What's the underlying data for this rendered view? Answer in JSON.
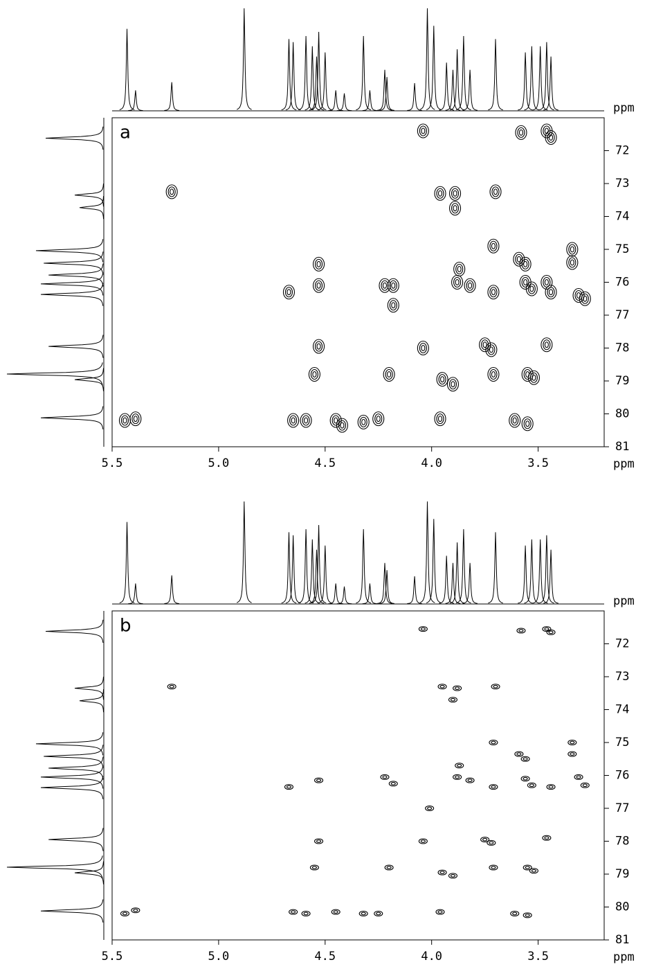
{
  "chart_data": [
    {
      "type": "contour",
      "panel_label": "a",
      "xlabel": "ppm",
      "ylabel": "ppm",
      "color": "#000000",
      "xlim": [
        5.5,
        3.19
      ],
      "ylim": [
        81,
        71
      ],
      "xticks": [
        5.5,
        {
          "value": 5,
          "label": "5.0"
        },
        4.5,
        {
          "value": 4,
          "label": "4.0"
        },
        3.5
      ],
      "yticks": [
        72,
        73,
        74,
        75,
        76,
        77,
        78,
        79,
        80,
        81
      ],
      "cross_peaks": {
        "x": [
          4.04,
          3.58,
          3.46,
          3.44,
          5.22,
          3.96,
          3.89,
          3.89,
          3.7,
          3.71,
          3.34,
          3.34,
          3.87,
          3.88,
          3.82,
          3.59,
          3.56,
          4.67,
          4.53,
          4.53,
          4.22,
          4.18,
          4.18,
          3.71,
          3.56,
          3.53,
          3.44,
          3.46,
          3.31,
          3.28,
          3.46,
          4.53,
          4.04,
          3.75,
          3.72,
          4.55,
          4.2,
          3.95,
          3.9,
          3.71,
          3.55,
          3.52,
          5.44,
          5.39,
          4.65,
          4.59,
          4.45,
          4.42,
          4.32,
          4.25,
          3.96,
          3.61,
          3.55
        ],
        "y": [
          71.4,
          71.45,
          71.4,
          71.6,
          73.25,
          73.3,
          73.3,
          73.75,
          73.25,
          74.9,
          75.0,
          75.4,
          75.6,
          76.0,
          76.1,
          75.3,
          75.45,
          76.3,
          76.1,
          75.45,
          76.1,
          76.1,
          76.7,
          76.3,
          76.0,
          76.2,
          76.3,
          76.0,
          76.4,
          76.5,
          77.9,
          77.95,
          78.0,
          77.9,
          78.05,
          78.8,
          78.8,
          78.95,
          79.1,
          78.8,
          78.8,
          78.9,
          80.2,
          80.15,
          80.2,
          80.2,
          80.2,
          80.35,
          80.25,
          80.15,
          80.15,
          80.2,
          80.3
        ]
      },
      "projection_top": {
        "x": [
          5.43,
          5.39,
          5.22,
          4.88,
          4.67,
          4.65,
          4.59,
          4.56,
          4.54,
          4.53,
          4.5,
          4.45,
          4.41,
          4.32,
          4.29,
          4.22,
          4.21,
          4.08,
          4.02,
          3.99,
          3.93,
          3.9,
          3.88,
          3.85,
          3.82,
          3.7,
          3.56,
          3.53,
          3.49,
          3.46,
          3.44
        ],
        "values": [
          80,
          20,
          28,
          100,
          70,
          67,
          73,
          63,
          53,
          77,
          57,
          20,
          17,
          73,
          20,
          40,
          33,
          27,
          100,
          83,
          47,
          40,
          60,
          73,
          40,
          70,
          57,
          63,
          63,
          67,
          53
        ]
      },
      "projection_left": {
        "y": [
          71.62,
          73.35,
          73.73,
          75.04,
          75.42,
          75.78,
          76.05,
          76.37,
          77.95,
          78.79,
          78.96,
          80.12
        ],
        "values": [
          60,
          30,
          25,
          70,
          62,
          57,
          65,
          65,
          57,
          100,
          30,
          65
        ]
      }
    },
    {
      "type": "contour",
      "panel_label": "b",
      "xlabel": "ppm",
      "ylabel": "ppm",
      "color": "#000000",
      "xlim": [
        5.5,
        3.19
      ],
      "ylim": [
        81,
        71
      ],
      "xticks": [
        5.5,
        {
          "value": 5,
          "label": "5.0"
        },
        4.5,
        {
          "value": 4,
          "label": "4.0"
        },
        3.5
      ],
      "yticks": [
        72,
        73,
        74,
        75,
        76,
        77,
        78,
        79,
        80,
        81
      ],
      "cross_peaks": {
        "x": [
          4.04,
          3.58,
          3.46,
          3.44,
          5.22,
          3.95,
          3.88,
          3.9,
          3.7,
          3.71,
          3.34,
          3.34,
          3.87,
          3.88,
          3.82,
          3.59,
          3.56,
          4.67,
          4.53,
          4.22,
          4.18,
          4.01,
          3.71,
          3.56,
          3.53,
          3.44,
          3.31,
          3.28,
          3.46,
          4.53,
          4.04,
          3.75,
          3.72,
          4.55,
          4.2,
          3.95,
          3.9,
          3.71,
          3.55,
          3.52,
          5.44,
          5.39,
          4.65,
          4.59,
          4.45,
          4.32,
          4.25,
          3.96,
          3.61,
          3.55
        ],
        "y": [
          71.55,
          71.6,
          71.55,
          71.65,
          73.3,
          73.3,
          73.35,
          73.7,
          73.3,
          75.0,
          75.0,
          75.35,
          75.7,
          76.05,
          76.15,
          75.35,
          75.5,
          76.35,
          76.15,
          76.05,
          76.25,
          77.0,
          76.35,
          76.1,
          76.3,
          76.35,
          76.05,
          76.3,
          77.9,
          78.0,
          78.0,
          77.95,
          78.05,
          78.8,
          78.8,
          78.95,
          79.05,
          78.8,
          78.8,
          78.9,
          80.2,
          80.1,
          80.15,
          80.2,
          80.15,
          80.2,
          80.2,
          80.15,
          80.2,
          80.25
        ]
      },
      "projection_top": {
        "x": [
          5.43,
          5.39,
          5.22,
          4.88,
          4.67,
          4.65,
          4.59,
          4.56,
          4.54,
          4.53,
          4.5,
          4.45,
          4.41,
          4.32,
          4.29,
          4.22,
          4.21,
          4.08,
          4.02,
          3.99,
          3.93,
          3.9,
          3.88,
          3.85,
          3.82,
          3.7,
          3.56,
          3.53,
          3.49,
          3.46,
          3.44
        ],
        "values": [
          80,
          20,
          28,
          100,
          70,
          67,
          73,
          63,
          53,
          77,
          57,
          20,
          17,
          73,
          20,
          40,
          33,
          27,
          100,
          83,
          47,
          40,
          60,
          73,
          40,
          70,
          57,
          63,
          63,
          67,
          53
        ]
      },
      "projection_left": {
        "y": [
          71.62,
          73.35,
          73.73,
          75.04,
          75.42,
          75.78,
          76.05,
          76.37,
          77.95,
          78.79,
          78.96,
          80.12
        ],
        "values": [
          60,
          30,
          25,
          70,
          62,
          57,
          65,
          65,
          57,
          100,
          30,
          65
        ]
      }
    }
  ]
}
